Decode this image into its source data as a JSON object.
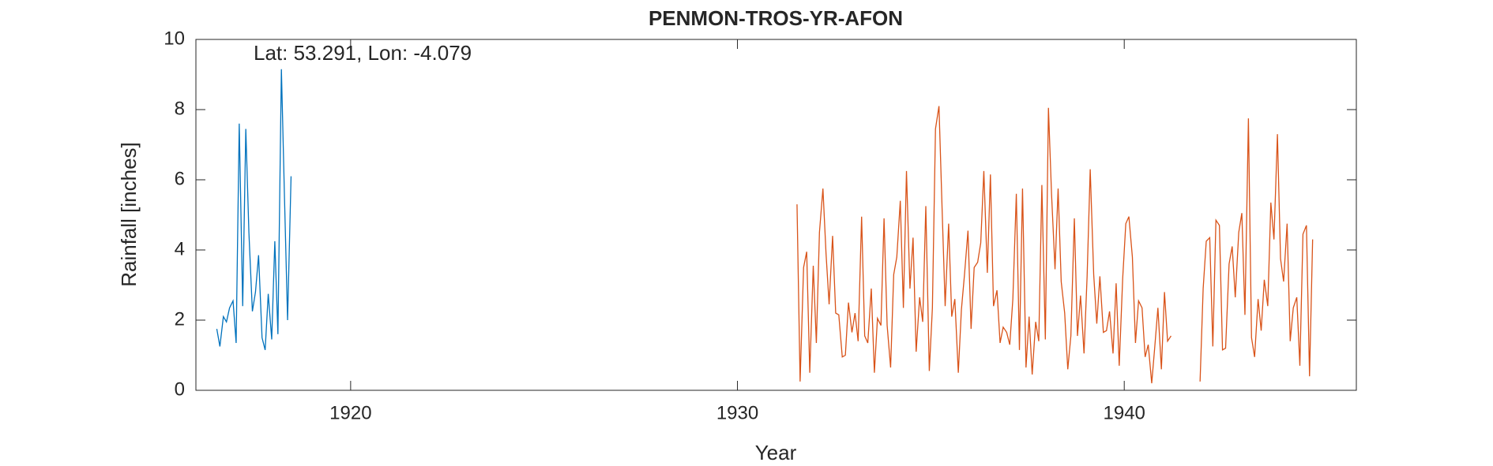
{
  "chart_data": {
    "type": "line",
    "title": "PENMON-TROS-YR-AFON",
    "annotation": "Lat: 53.291, Lon: -4.079",
    "x_label": "Year",
    "y_label": "Rainfall [inches]",
    "xlim": [
      1916,
      1946
    ],
    "xticks": [
      1920,
      1930,
      1940
    ],
    "ylim": [
      0,
      10
    ],
    "yticks": [
      0,
      2,
      4,
      6,
      8,
      10
    ],
    "grid": false,
    "series": [
      {
        "color": "#0072BD",
        "x": [
          1916.54,
          1916.62,
          1916.71,
          1916.79,
          1916.87,
          1916.96,
          1917.04,
          1917.12,
          1917.21,
          1917.29,
          1917.37,
          1917.46,
          1917.54,
          1917.62,
          1917.71,
          1917.79,
          1917.87,
          1917.96,
          1918.04,
          1918.12,
          1918.21,
          1918.29,
          1918.37,
          1918.46
        ],
        "values": [
          1.75,
          1.25,
          2.1,
          1.95,
          2.35,
          2.55,
          1.35,
          7.6,
          2.4,
          7.45,
          4.5,
          2.25,
          2.8,
          3.85,
          1.5,
          1.15,
          2.75,
          1.45,
          4.25,
          1.6,
          9.15,
          5.5,
          2.0,
          6.1
        ]
      },
      {
        "color": "#D95319",
        "x": [
          1931.54,
          1931.62,
          1931.71,
          1931.79,
          1931.87,
          1931.96,
          1932.04,
          1932.12,
          1932.21,
          1932.29,
          1932.37,
          1932.46,
          1932.54,
          1932.62,
          1932.71,
          1932.79,
          1932.87,
          1932.96,
          1933.04,
          1933.12,
          1933.21,
          1933.29,
          1933.37,
          1933.46,
          1933.54,
          1933.62,
          1933.71,
          1933.79,
          1933.87,
          1933.96,
          1934.04,
          1934.12,
          1934.21,
          1934.29,
          1934.37,
          1934.46,
          1934.54,
          1934.62,
          1934.71,
          1934.79,
          1934.87,
          1934.96,
          1935.04,
          1935.12,
          1935.21,
          1935.29,
          1935.37,
          1935.46,
          1935.54,
          1935.62,
          1935.71,
          1935.79,
          1935.87,
          1935.96,
          1936.04,
          1936.12,
          1936.21,
          1936.29,
          1936.37,
          1936.46,
          1936.54,
          1936.62,
          1936.71,
          1936.79,
          1936.87,
          1936.96,
          1937.04,
          1937.12,
          1937.21,
          1937.29,
          1937.37,
          1937.46,
          1937.54,
          1937.62,
          1937.71,
          1937.79,
          1937.87,
          1937.96,
          1938.04,
          1938.12,
          1938.21,
          1938.29,
          1938.37,
          1938.46,
          1938.54,
          1938.62,
          1938.71,
          1938.79,
          1938.87,
          1938.96,
          1939.04,
          1939.12,
          1939.21,
          1939.29,
          1939.37,
          1939.46,
          1939.54,
          1939.62,
          1939.71,
          1939.79,
          1939.87,
          1939.96,
          1940.04,
          1940.12,
          1940.21,
          1940.29,
          1940.37,
          1940.46,
          1940.54,
          1940.62,
          1940.71,
          1940.79,
          1940.87,
          1940.96,
          1941.04,
          1941.12,
          1941.21,
          1941.29,
          1941.37,
          1941.46,
          1941.54,
          1941.62,
          1941.71,
          1941.79,
          1941.87,
          1941.96,
          1942.04,
          1942.12,
          1942.21,
          1942.29,
          1942.37,
          1942.46,
          1942.54,
          1942.62,
          1942.71,
          1942.79,
          1942.87,
          1942.96,
          1943.04,
          1943.12,
          1943.21,
          1943.29,
          1943.37,
          1943.46,
          1943.54,
          1943.62,
          1943.71,
          1943.79,
          1943.87,
          1943.96,
          1944.04,
          1944.12,
          1944.21,
          1944.29,
          1944.37,
          1944.46,
          1944.54,
          1944.62,
          1944.71,
          1944.79,
          1944.87
        ],
        "values": [
          5.3,
          0.25,
          3.5,
          3.95,
          0.5,
          3.55,
          1.35,
          4.5,
          5.75,
          3.9,
          2.45,
          4.4,
          2.2,
          2.15,
          0.95,
          1.0,
          2.5,
          1.65,
          2.2,
          1.4,
          4.95,
          1.55,
          1.35,
          2.9,
          0.5,
          2.05,
          1.85,
          4.9,
          1.85,
          0.65,
          3.3,
          3.8,
          5.4,
          2.35,
          6.25,
          2.9,
          4.35,
          1.1,
          2.65,
          1.95,
          5.25,
          0.55,
          2.35,
          7.45,
          8.1,
          5.2,
          2.4,
          4.75,
          2.1,
          2.6,
          0.5,
          2.3,
          3.3,
          4.55,
          1.75,
          3.5,
          3.65,
          4.2,
          6.25,
          3.35,
          6.15,
          2.4,
          2.85,
          1.35,
          1.8,
          1.65,
          1.3,
          2.6,
          5.6,
          1.15,
          5.75,
          0.65,
          2.1,
          0.45,
          1.95,
          1.4,
          5.85,
          1.45,
          8.05,
          5.6,
          3.45,
          5.75,
          3.1,
          2.2,
          0.6,
          1.55,
          4.9,
          1.55,
          2.7,
          1.05,
          3.25,
          6.3,
          3.3,
          1.9,
          3.25,
          1.65,
          1.7,
          2.25,
          1.05,
          3.05,
          0.7,
          3.2,
          4.75,
          4.95,
          3.8,
          1.35,
          2.55,
          2.35,
          0.95,
          1.3,
          0.2,
          1.25,
          2.35,
          0.6,
          2.8,
          1.4,
          1.55,
          null,
          null,
          null,
          null,
          null,
          null,
          null,
          null,
          0.25,
          2.9,
          4.25,
          4.35,
          1.25,
          4.85,
          4.7,
          1.15,
          1.2,
          3.6,
          4.1,
          2.65,
          4.5,
          5.05,
          2.15,
          7.75,
          1.5,
          0.95,
          2.6,
          1.7,
          3.15,
          2.4,
          5.35,
          4.3,
          7.3,
          3.75,
          3.1,
          4.75,
          1.4,
          2.35,
          2.65,
          0.7,
          4.45,
          4.7,
          0.4,
          4.3
        ]
      }
    ]
  }
}
